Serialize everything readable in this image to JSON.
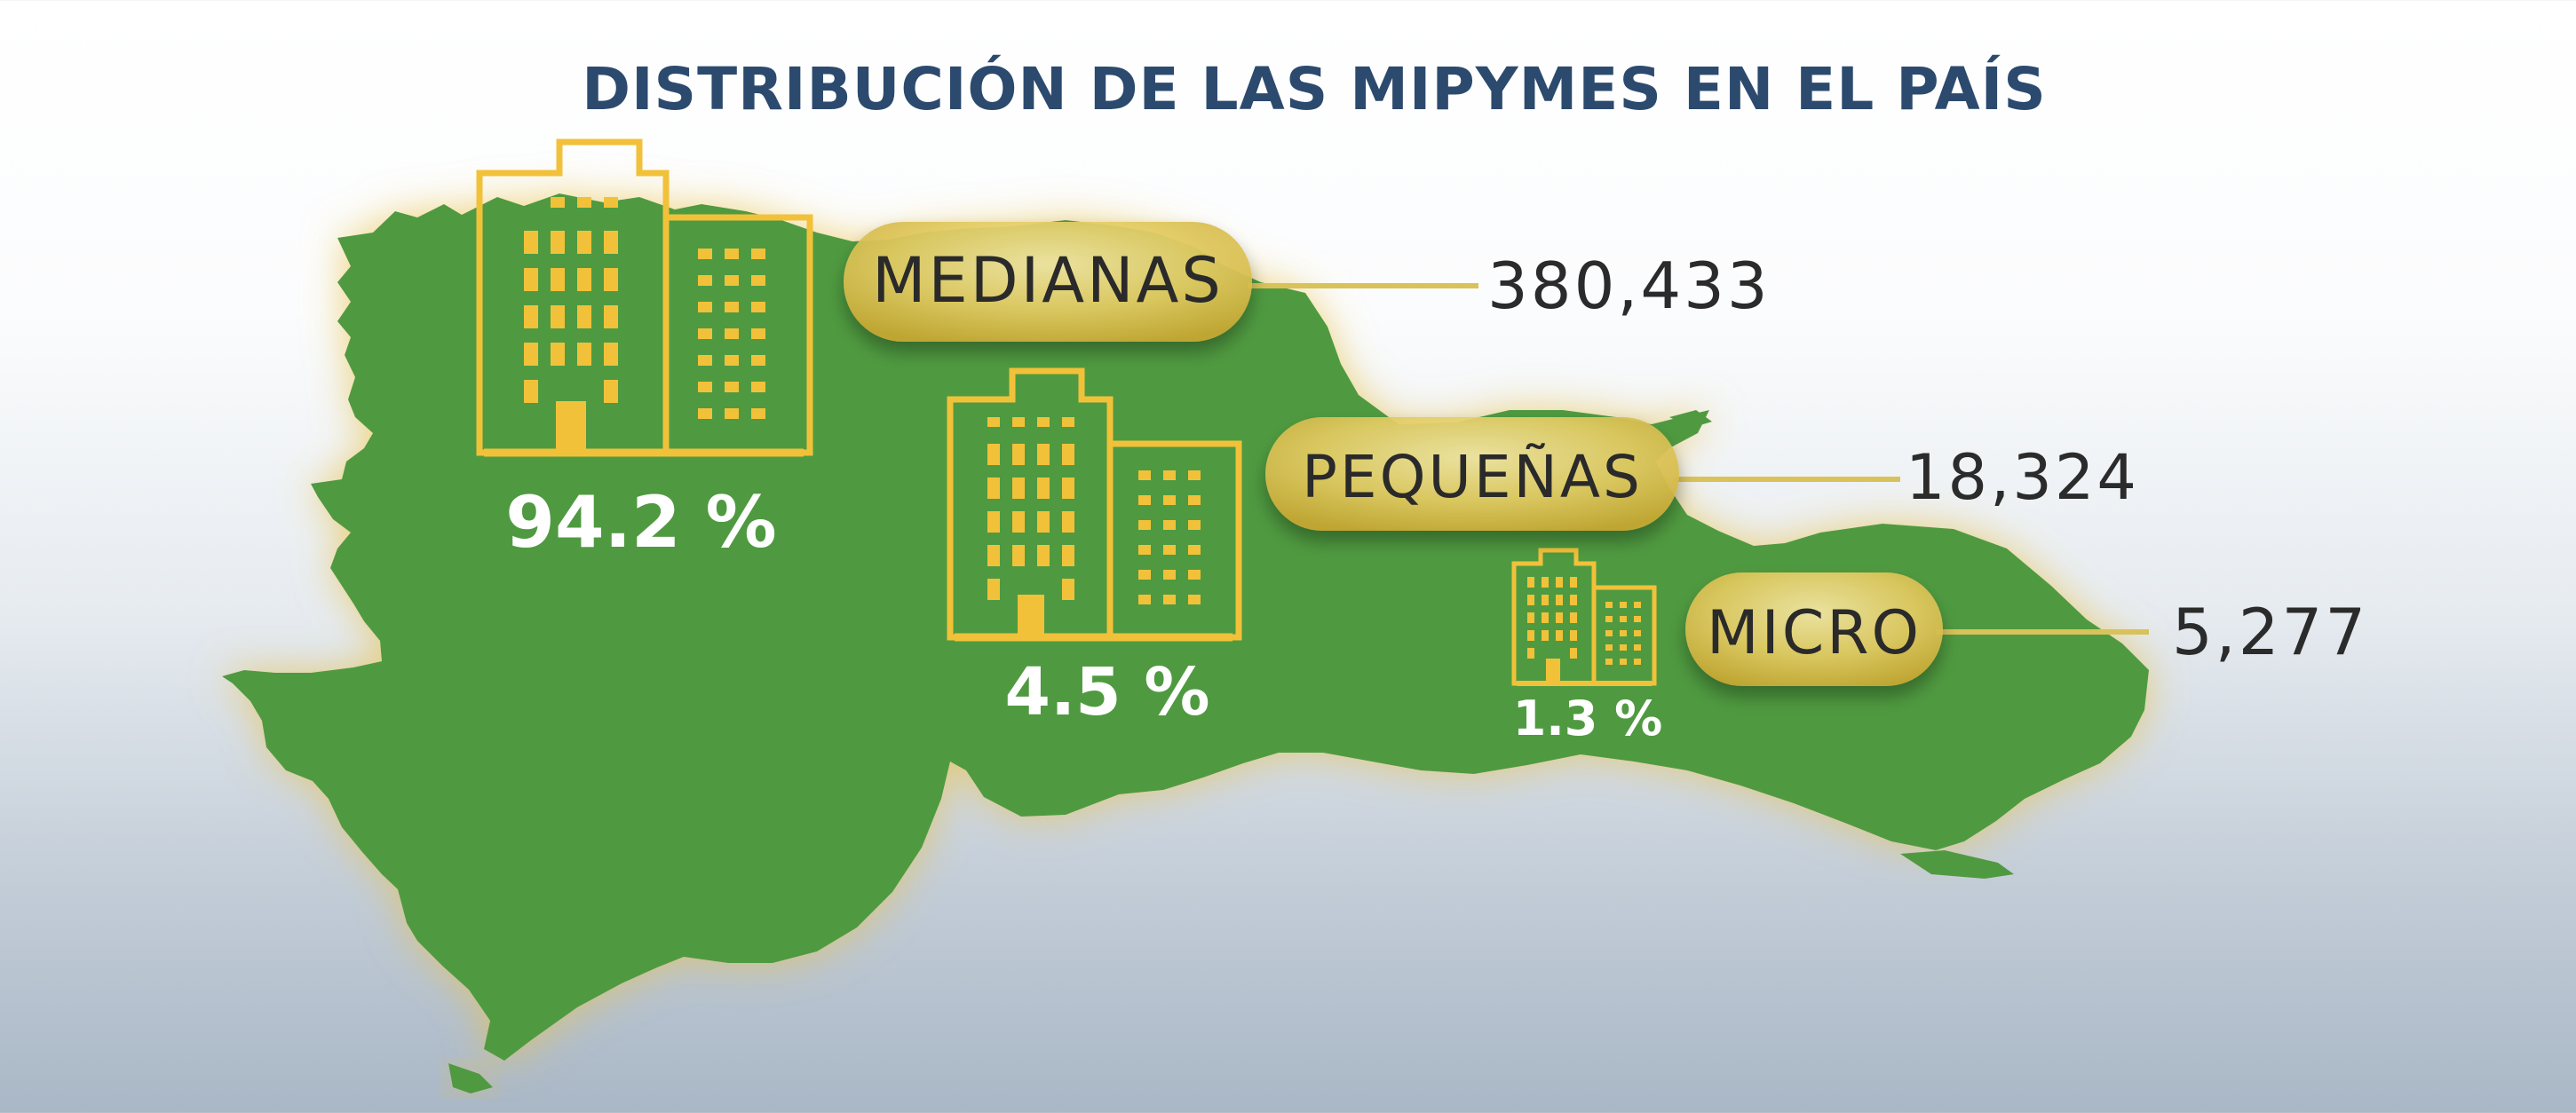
{
  "title": "DISTRIBUCIÓN DE LAS MIPYMES EN EL PAÍS",
  "colors": {
    "map_green": "#4f9a41",
    "gold": "#f2c13a",
    "title_blue": "#2c4a6e",
    "text_dark": "#2b2b2b"
  },
  "categories": [
    {
      "label": "MEDIANAS",
      "value": "380,433",
      "percent": "94.2 %",
      "icon": "building-icon"
    },
    {
      "label": "PEQUEÑAS",
      "value": "18,324",
      "percent": "4.5 %",
      "icon": "building-icon"
    },
    {
      "label": "MICRO",
      "value": "5,277",
      "percent": "1.3 %",
      "icon": "building-icon"
    }
  ]
}
